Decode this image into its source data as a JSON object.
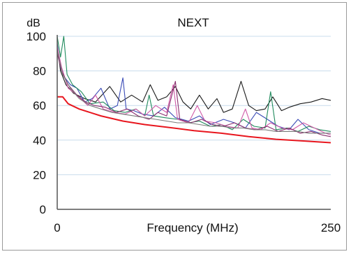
{
  "chart_data": {
    "type": "line",
    "title": "NEXT",
    "xlabel": "Frequency (MHz)",
    "ylabel": "dB",
    "xlim": [
      0,
      250
    ],
    "ylim": [
      0,
      100
    ],
    "x_ticks": [
      "0",
      "250"
    ],
    "y_ticks": [
      "0",
      "20",
      "40",
      "60",
      "80",
      "100"
    ],
    "grid": "horizontal",
    "legend": "none",
    "plot_background": "#ffffff",
    "grid_color": "#c8dcec",
    "limit_line": {
      "color": "#e8161e",
      "points": [
        [
          0,
          65
        ],
        [
          5,
          65
        ],
        [
          10,
          61
        ],
        [
          20,
          58
        ],
        [
          40,
          54
        ],
        [
          60,
          51
        ],
        [
          80,
          49
        ],
        [
          100,
          47.5
        ],
        [
          125,
          45.5
        ],
        [
          150,
          44
        ],
        [
          175,
          42
        ],
        [
          200,
          40.5
        ],
        [
          225,
          39.5
        ],
        [
          250,
          38.5
        ]
      ]
    },
    "series": [
      {
        "color": "#1a1a1a",
        "points": [
          [
            0,
            95
          ],
          [
            3,
            80
          ],
          [
            8,
            72
          ],
          [
            15,
            67
          ],
          [
            25,
            64
          ],
          [
            35,
            62
          ],
          [
            48,
            71
          ],
          [
            58,
            62
          ],
          [
            68,
            66
          ],
          [
            78,
            62
          ],
          [
            85,
            72
          ],
          [
            92,
            63
          ],
          [
            100,
            65
          ],
          [
            108,
            71
          ],
          [
            115,
            62
          ],
          [
            122,
            58
          ],
          [
            130,
            66
          ],
          [
            138,
            58
          ],
          [
            146,
            64
          ],
          [
            152,
            56
          ],
          [
            160,
            58
          ],
          [
            168,
            74
          ],
          [
            175,
            60
          ],
          [
            182,
            57
          ],
          [
            190,
            58
          ],
          [
            197,
            65
          ],
          [
            205,
            57
          ],
          [
            212,
            59
          ],
          [
            222,
            61
          ],
          [
            232,
            62
          ],
          [
            242,
            64
          ],
          [
            250,
            63
          ]
        ]
      },
      {
        "color": "#3a4bb6",
        "points": [
          [
            0,
            96
          ],
          [
            3,
            82
          ],
          [
            7,
            76
          ],
          [
            12,
            72
          ],
          [
            18,
            70
          ],
          [
            25,
            62
          ],
          [
            32,
            64
          ],
          [
            40,
            70
          ],
          [
            48,
            58
          ],
          [
            55,
            60
          ],
          [
            60,
            76
          ],
          [
            63,
            58
          ],
          [
            70,
            57
          ],
          [
            78,
            55
          ],
          [
            88,
            54
          ],
          [
            98,
            59
          ],
          [
            108,
            53
          ],
          [
            120,
            51
          ],
          [
            130,
            54
          ],
          [
            140,
            49
          ],
          [
            152,
            52
          ],
          [
            162,
            50
          ],
          [
            172,
            47
          ],
          [
            182,
            56
          ],
          [
            192,
            52
          ],
          [
            202,
            48
          ],
          [
            212,
            46
          ],
          [
            220,
            52
          ],
          [
            230,
            46
          ],
          [
            240,
            44
          ],
          [
            250,
            44
          ]
        ]
      },
      {
        "color": "#1f8a5c",
        "points": [
          [
            0,
            100
          ],
          [
            3,
            88
          ],
          [
            6,
            100
          ],
          [
            9,
            78
          ],
          [
            14,
            72
          ],
          [
            22,
            68
          ],
          [
            30,
            61
          ],
          [
            42,
            62
          ],
          [
            52,
            57
          ],
          [
            62,
            56
          ],
          [
            72,
            58
          ],
          [
            80,
            54
          ],
          [
            84,
            66
          ],
          [
            88,
            54
          ],
          [
            98,
            53
          ],
          [
            110,
            52
          ],
          [
            120,
            50
          ],
          [
            130,
            51
          ],
          [
            140,
            48
          ],
          [
            150,
            49
          ],
          [
            160,
            46
          ],
          [
            170,
            52
          ],
          [
            180,
            48
          ],
          [
            190,
            47
          ],
          [
            195,
            68
          ],
          [
            200,
            46
          ],
          [
            210,
            47
          ],
          [
            220,
            45
          ],
          [
            230,
            48
          ],
          [
            240,
            46
          ],
          [
            250,
            45
          ]
        ]
      },
      {
        "color": "#d05aa8",
        "points": [
          [
            0,
            94
          ],
          [
            4,
            82
          ],
          [
            10,
            70
          ],
          [
            18,
            66
          ],
          [
            28,
            60
          ],
          [
            35,
            66
          ],
          [
            42,
            58
          ],
          [
            52,
            56
          ],
          [
            62,
            55
          ],
          [
            72,
            58
          ],
          [
            80,
            54
          ],
          [
            90,
            60
          ],
          [
            100,
            56
          ],
          [
            106,
            72
          ],
          [
            110,
            52
          ],
          [
            120,
            50
          ],
          [
            128,
            60
          ],
          [
            135,
            51
          ],
          [
            145,
            50
          ],
          [
            155,
            48
          ],
          [
            165,
            47
          ],
          [
            172,
            58
          ],
          [
            178,
            47
          ],
          [
            186,
            46
          ],
          [
            195,
            50
          ],
          [
            205,
            47
          ],
          [
            215,
            46
          ],
          [
            225,
            50
          ],
          [
            235,
            47
          ],
          [
            245,
            44
          ],
          [
            250,
            43
          ]
        ]
      },
      {
        "color": "#8a2e6e",
        "points": [
          [
            0,
            90
          ],
          [
            4,
            80
          ],
          [
            10,
            72
          ],
          [
            18,
            66
          ],
          [
            26,
            62
          ],
          [
            34,
            60
          ],
          [
            44,
            59
          ],
          [
            54,
            56
          ],
          [
            64,
            58
          ],
          [
            74,
            54
          ],
          [
            84,
            52
          ],
          [
            92,
            56
          ],
          [
            100,
            54
          ],
          [
            108,
            74
          ],
          [
            112,
            52
          ],
          [
            122,
            50
          ],
          [
            132,
            52
          ],
          [
            142,
            49
          ],
          [
            152,
            48
          ],
          [
            162,
            50
          ],
          [
            172,
            47
          ],
          [
            182,
            46
          ],
          [
            192,
            48
          ],
          [
            202,
            45
          ],
          [
            212,
            47
          ],
          [
            222,
            44
          ],
          [
            232,
            45
          ],
          [
            242,
            43
          ],
          [
            250,
            42
          ]
        ]
      },
      {
        "color": "#7a7a7a",
        "points": [
          [
            0,
            92
          ],
          [
            5,
            78
          ],
          [
            12,
            70
          ],
          [
            20,
            64
          ],
          [
            30,
            60
          ],
          [
            40,
            58
          ],
          [
            50,
            56
          ],
          [
            60,
            55
          ],
          [
            70,
            54
          ],
          [
            80,
            53
          ],
          [
            90,
            52
          ],
          [
            100,
            51
          ],
          [
            110,
            50
          ],
          [
            120,
            50
          ],
          [
            130,
            49
          ],
          [
            140,
            48
          ],
          [
            150,
            48
          ],
          [
            160,
            47
          ],
          [
            170,
            47
          ],
          [
            180,
            46
          ],
          [
            190,
            46
          ],
          [
            200,
            45
          ],
          [
            210,
            45
          ],
          [
            220,
            45
          ],
          [
            230,
            44
          ],
          [
            240,
            44
          ],
          [
            250,
            44
          ]
        ]
      }
    ]
  }
}
